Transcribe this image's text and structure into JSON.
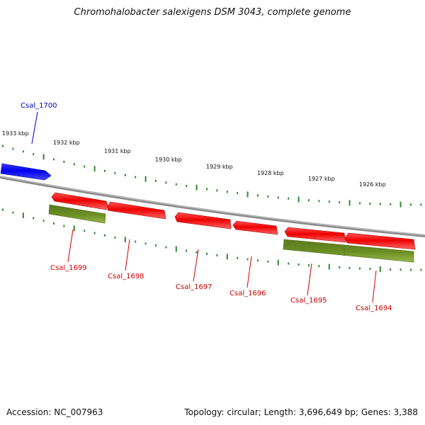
{
  "title": "Chromohalobacter salexigens DSM 3043, complete genome",
  "accession_text": "Accession: NC_007963",
  "summary_text": "Topology: circular; Length: 3,696,649 bp; Genes: 3,388",
  "colors": {
    "backbone": "#8a8a8a",
    "tick": "#2e8b2e",
    "gene_red": "#ee0000",
    "gene_blue": "#0000ee",
    "gene_olive": "#6b8e23",
    "label_red": "#cc0000",
    "label_blue": "#0000cc"
  },
  "kbp_labels": [
    "1933 kbp",
    "1932 kbp",
    "1931 kbp",
    "1930 kbp",
    "1929 kbp",
    "1928 kbp",
    "1927 kbp",
    "1926 kbp"
  ],
  "genes": [
    {
      "name": "Csal_1700",
      "color": "blue",
      "track": "top"
    },
    {
      "name": "Csal_1699",
      "color": "red",
      "track": "bottom"
    },
    {
      "name": "Csal_1698",
      "color": "red",
      "track": "bottom"
    },
    {
      "name": "Csal_1697",
      "color": "red",
      "track": "bottom"
    },
    {
      "name": "Csal_1696",
      "color": "red",
      "track": "bottom"
    },
    {
      "name": "Csal_1695",
      "color": "red",
      "track": "bottom"
    },
    {
      "name": "Csal_1694",
      "color": "red",
      "track": "bottom"
    }
  ]
}
